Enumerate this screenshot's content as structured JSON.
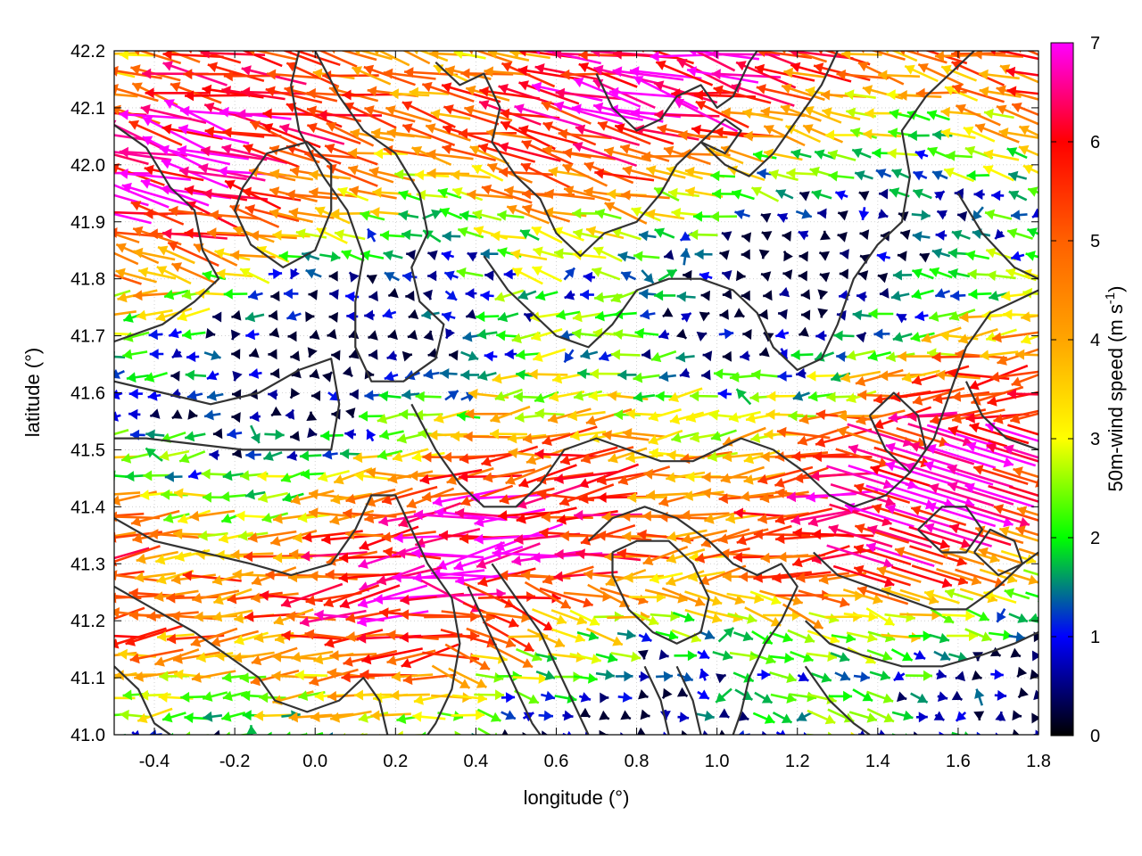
{
  "chart_data": {
    "type": "quiver",
    "xlabel": "longitude (°)",
    "ylabel": "latitude (°)",
    "xlim": [
      -0.5,
      1.8
    ],
    "ylim": [
      41.0,
      42.2
    ],
    "x_ticks": [
      -0.4,
      -0.2,
      0.0,
      0.2,
      0.4,
      0.6,
      0.8,
      1.0,
      1.2,
      1.4,
      1.6,
      1.8
    ],
    "x_tick_labels": [
      "-0.4",
      "-0.2",
      "0.0",
      "0.2",
      "0.4",
      "0.6",
      "0.8",
      "1.0",
      "1.2",
      "1.4",
      "1.6",
      "1.8"
    ],
    "y_ticks": [
      41.0,
      41.1,
      41.2,
      41.3,
      41.4,
      41.5,
      41.6,
      41.7,
      41.8,
      41.9,
      42.0,
      42.1,
      42.2
    ],
    "y_tick_labels": [
      "41.0",
      "41.1",
      "41.2",
      "41.3",
      "41.4",
      "41.5",
      "41.6",
      "41.7",
      "41.8",
      "41.9",
      "42.0",
      "42.1",
      "42.2"
    ],
    "grid": true,
    "colorbar": {
      "label": "50m-wind speed (m s-1)",
      "label_main": "50m-wind speed (m s",
      "label_sup": "-1",
      "label_end": ")",
      "range": [
        0,
        7
      ],
      "ticks": [
        0,
        1,
        2,
        3,
        4,
        5,
        6,
        7
      ],
      "tick_labels": [
        "0",
        "1",
        "2",
        "3",
        "4",
        "5",
        "6",
        "7"
      ],
      "stops": [
        {
          "value": 0.0,
          "color": "#000000"
        },
        {
          "value": 1.0,
          "color": "#0000ff"
        },
        {
          "value": 1.5,
          "color": "#008080"
        },
        {
          "value": 2.0,
          "color": "#00ff00"
        },
        {
          "value": 3.0,
          "color": "#ffff00"
        },
        {
          "value": 4.0,
          "color": "#ffa500"
        },
        {
          "value": 5.0,
          "color": "#ff6000"
        },
        {
          "value": 6.0,
          "color": "#ff0000"
        },
        {
          "value": 7.0,
          "color": "#ff00ff"
        }
      ]
    },
    "contour_color": "#333333",
    "contours": [
      [
        [
          -0.5,
          42.07
        ],
        [
          -0.42,
          42.03
        ],
        [
          -0.36,
          41.96
        ],
        [
          -0.3,
          41.92
        ],
        [
          -0.28,
          41.85
        ],
        [
          -0.24,
          41.8
        ],
        [
          -0.3,
          41.76
        ],
        [
          -0.38,
          41.72
        ],
        [
          -0.46,
          41.7
        ],
        [
          -0.5,
          41.69
        ]
      ],
      [
        [
          -0.5,
          41.62
        ],
        [
          -0.38,
          41.6
        ],
        [
          -0.26,
          41.58
        ],
        [
          -0.14,
          41.6
        ],
        [
          -0.04,
          41.64
        ],
        [
          0.04,
          41.66
        ],
        [
          0.06,
          41.58
        ],
        [
          0.04,
          41.5
        ],
        [
          -0.06,
          41.5
        ],
        [
          -0.18,
          41.5
        ],
        [
          -0.3,
          41.51
        ],
        [
          -0.42,
          41.52
        ],
        [
          -0.5,
          41.52
        ]
      ],
      [
        [
          -0.18,
          41.96
        ],
        [
          -0.12,
          42.02
        ],
        [
          -0.02,
          42.04
        ],
        [
          0.04,
          42.0
        ],
        [
          0.04,
          41.92
        ],
        [
          0.0,
          41.85
        ],
        [
          -0.08,
          41.82
        ],
        [
          -0.16,
          41.86
        ],
        [
          -0.2,
          41.92
        ],
        [
          -0.18,
          41.96
        ]
      ],
      [
        [
          0.0,
          42.2
        ],
        [
          0.06,
          42.12
        ],
        [
          0.12,
          42.06
        ],
        [
          0.2,
          42.02
        ],
        [
          0.26,
          41.95
        ],
        [
          0.28,
          41.88
        ],
        [
          0.24,
          41.82
        ],
        [
          0.26,
          41.76
        ],
        [
          0.32,
          41.72
        ],
        [
          0.3,
          41.66
        ],
        [
          0.22,
          41.62
        ],
        [
          0.14,
          41.62
        ],
        [
          0.1,
          41.68
        ],
        [
          0.1,
          41.76
        ],
        [
          0.12,
          41.84
        ],
        [
          0.08,
          41.92
        ],
        [
          0.02,
          41.98
        ],
        [
          -0.04,
          42.06
        ],
        [
          -0.06,
          42.14
        ],
        [
          -0.04,
          42.2
        ]
      ],
      [
        [
          0.3,
          42.18
        ],
        [
          0.36,
          42.14
        ],
        [
          0.42,
          42.16
        ],
        [
          0.46,
          42.1
        ],
        [
          0.44,
          42.04
        ],
        [
          0.5,
          41.98
        ],
        [
          0.56,
          41.94
        ],
        [
          0.6,
          41.88
        ],
        [
          0.66,
          41.84
        ],
        [
          0.72,
          41.88
        ],
        [
          0.8,
          41.9
        ],
        [
          0.86,
          41.95
        ],
        [
          0.9,
          42.0
        ],
        [
          0.96,
          42.04
        ],
        [
          1.02,
          42.0
        ],
        [
          1.08,
          41.98
        ],
        [
          1.14,
          42.02
        ],
        [
          1.2,
          42.08
        ],
        [
          1.26,
          42.14
        ],
        [
          1.3,
          42.2
        ]
      ],
      [
        [
          0.7,
          42.16
        ],
        [
          0.74,
          42.1
        ],
        [
          0.8,
          42.06
        ],
        [
          0.86,
          42.08
        ],
        [
          0.9,
          42.12
        ],
        [
          0.96,
          42.14
        ],
        [
          1.0,
          42.1
        ],
        [
          1.04,
          42.12
        ],
        [
          1.08,
          42.18
        ],
        [
          1.1,
          42.2
        ]
      ],
      [
        [
          0.42,
          41.84
        ],
        [
          0.48,
          41.78
        ],
        [
          0.54,
          41.74
        ],
        [
          0.6,
          41.7
        ],
        [
          0.68,
          41.68
        ],
        [
          0.74,
          41.72
        ],
        [
          0.8,
          41.78
        ],
        [
          0.88,
          41.8
        ],
        [
          0.96,
          41.8
        ],
        [
          1.04,
          41.78
        ],
        [
          1.1,
          41.74
        ],
        [
          1.14,
          41.68
        ],
        [
          1.2,
          41.64
        ],
        [
          1.26,
          41.66
        ],
        [
          1.3,
          41.72
        ],
        [
          1.34,
          41.8
        ],
        [
          1.4,
          41.86
        ],
        [
          1.46,
          41.9
        ],
        [
          1.48,
          41.98
        ],
        [
          1.46,
          42.06
        ],
        [
          1.52,
          42.12
        ],
        [
          1.58,
          42.16
        ],
        [
          1.64,
          42.2
        ]
      ],
      [
        [
          0.24,
          41.58
        ],
        [
          0.3,
          41.5
        ],
        [
          0.36,
          41.44
        ],
        [
          0.42,
          41.4
        ],
        [
          0.5,
          41.4
        ],
        [
          0.56,
          41.44
        ],
        [
          0.62,
          41.5
        ],
        [
          0.7,
          41.52
        ],
        [
          0.78,
          41.5
        ],
        [
          0.86,
          41.48
        ],
        [
          0.94,
          41.48
        ],
        [
          1.0,
          41.5
        ],
        [
          1.06,
          41.52
        ],
        [
          1.14,
          41.5
        ],
        [
          1.22,
          41.46
        ],
        [
          1.28,
          41.42
        ],
        [
          1.34,
          41.4
        ],
        [
          1.42,
          41.42
        ],
        [
          1.48,
          41.46
        ],
        [
          1.54,
          41.52
        ],
        [
          1.58,
          41.6
        ],
        [
          1.62,
          41.68
        ],
        [
          1.68,
          41.74
        ],
        [
          1.74,
          41.76
        ],
        [
          1.8,
          41.78
        ]
      ],
      [
        [
          1.6,
          41.95
        ],
        [
          1.66,
          41.88
        ],
        [
          1.74,
          41.82
        ],
        [
          1.8,
          41.8
        ]
      ],
      [
        [
          1.62,
          41.62
        ],
        [
          1.66,
          41.56
        ],
        [
          1.72,
          41.52
        ],
        [
          1.8,
          41.5
        ]
      ],
      [
        [
          -0.5,
          41.38
        ],
        [
          -0.4,
          41.34
        ],
        [
          -0.28,
          41.32
        ],
        [
          -0.16,
          41.3
        ],
        [
          -0.06,
          41.28
        ],
        [
          0.04,
          41.3
        ],
        [
          0.1,
          41.36
        ],
        [
          0.14,
          41.42
        ],
        [
          0.2,
          41.42
        ],
        [
          0.24,
          41.36
        ],
        [
          0.28,
          41.3
        ],
        [
          0.34,
          41.24
        ],
        [
          0.36,
          41.16
        ],
        [
          0.34,
          41.08
        ],
        [
          0.3,
          41.02
        ],
        [
          0.28,
          41.0
        ]
      ],
      [
        [
          -0.5,
          41.26
        ],
        [
          -0.4,
          41.22
        ],
        [
          -0.3,
          41.18
        ],
        [
          -0.22,
          41.14
        ],
        [
          -0.14,
          41.1
        ],
        [
          -0.1,
          41.06
        ],
        [
          -0.02,
          41.04
        ],
        [
          0.06,
          41.06
        ],
        [
          0.12,
          41.1
        ],
        [
          0.16,
          41.06
        ],
        [
          0.18,
          41.0
        ]
      ],
      [
        [
          -0.5,
          41.12
        ],
        [
          -0.44,
          41.08
        ],
        [
          -0.4,
          41.02
        ],
        [
          -0.36,
          41.0
        ]
      ],
      [
        [
          0.38,
          41.26
        ],
        [
          0.42,
          41.2
        ],
        [
          0.46,
          41.14
        ],
        [
          0.5,
          41.08
        ],
        [
          0.54,
          41.02
        ],
        [
          0.56,
          41.0
        ]
      ],
      [
        [
          0.44,
          41.3
        ],
        [
          0.5,
          41.24
        ],
        [
          0.56,
          41.18
        ],
        [
          0.6,
          41.12
        ],
        [
          0.64,
          41.06
        ],
        [
          0.68,
          41.0
        ]
      ],
      [
        [
          0.68,
          41.34
        ],
        [
          0.74,
          41.38
        ],
        [
          0.82,
          41.4
        ],
        [
          0.9,
          41.38
        ],
        [
          0.98,
          41.34
        ],
        [
          1.04,
          41.3
        ],
        [
          1.1,
          41.28
        ],
        [
          1.16,
          41.3
        ],
        [
          1.2,
          41.26
        ],
        [
          1.16,
          41.2
        ],
        [
          1.12,
          41.16
        ],
        [
          1.08,
          41.1
        ],
        [
          1.06,
          41.04
        ],
        [
          1.04,
          41.0
        ]
      ],
      [
        [
          0.74,
          41.32
        ],
        [
          0.8,
          41.34
        ],
        [
          0.88,
          41.34
        ],
        [
          0.94,
          41.3
        ],
        [
          0.98,
          41.24
        ],
        [
          0.96,
          41.18
        ],
        [
          0.9,
          41.16
        ],
        [
          0.84,
          41.18
        ],
        [
          0.78,
          41.22
        ],
        [
          0.74,
          41.28
        ],
        [
          0.74,
          41.32
        ]
      ],
      [
        [
          0.82,
          41.12
        ],
        [
          0.86,
          41.06
        ],
        [
          0.88,
          41.0
        ]
      ],
      [
        [
          0.9,
          41.12
        ],
        [
          0.94,
          41.06
        ],
        [
          0.96,
          41.0
        ]
      ],
      [
        [
          1.24,
          41.32
        ],
        [
          1.3,
          41.28
        ],
        [
          1.38,
          41.26
        ],
        [
          1.46,
          41.24
        ],
        [
          1.54,
          41.22
        ],
        [
          1.62,
          41.22
        ],
        [
          1.7,
          41.26
        ],
        [
          1.76,
          41.3
        ],
        [
          1.8,
          41.32
        ]
      ],
      [
        [
          1.22,
          41.2
        ],
        [
          1.28,
          41.16
        ],
        [
          1.36,
          41.14
        ],
        [
          1.46,
          41.12
        ],
        [
          1.56,
          41.12
        ],
        [
          1.66,
          41.14
        ],
        [
          1.74,
          41.16
        ],
        [
          1.8,
          41.18
        ]
      ],
      [
        [
          1.22,
          41.12
        ],
        [
          1.28,
          41.06
        ],
        [
          1.34,
          41.02
        ],
        [
          1.38,
          41.0
        ]
      ],
      [
        [
          1.5,
          41.36
        ],
        [
          1.56,
          41.32
        ],
        [
          1.62,
          41.32
        ],
        [
          1.66,
          41.36
        ],
        [
          1.62,
          41.4
        ],
        [
          1.56,
          41.4
        ],
        [
          1.5,
          41.36
        ]
      ],
      [
        [
          1.64,
          41.32
        ],
        [
          1.7,
          41.28
        ],
        [
          1.76,
          41.3
        ],
        [
          1.74,
          41.34
        ],
        [
          1.68,
          41.36
        ],
        [
          1.64,
          41.32
        ]
      ],
      [
        [
          1.38,
          41.56
        ],
        [
          1.42,
          41.5
        ],
        [
          1.48,
          41.46
        ],
        [
          1.52,
          41.5
        ],
        [
          1.5,
          41.56
        ],
        [
          1.44,
          41.6
        ],
        [
          1.38,
          41.56
        ]
      ],
      [
        [
          0.96,
          42.04
        ],
        [
          1.02,
          42.08
        ],
        [
          1.06,
          42.06
        ],
        [
          1.02,
          42.02
        ],
        [
          0.96,
          42.04
        ]
      ]
    ]
  }
}
